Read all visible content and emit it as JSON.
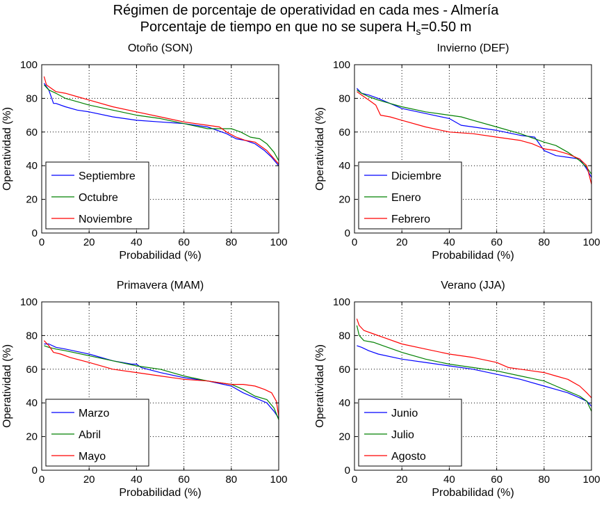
{
  "figure": {
    "title_line1": "Régimen de porcentaje de operatividad en cada mes - Almería",
    "title_line2_prefix": "Porcentaje de tiempo en que no se supera H",
    "title_line2_subscript": "s",
    "title_line2_suffix": "=0.50 m"
  },
  "colors": {
    "blue": "#0000ff",
    "green": "#008000",
    "red": "#ff0000",
    "grid": "#000000"
  },
  "chart_data": [
    {
      "type": "line",
      "title": "Otoño (SON)",
      "xlabel": "Probabilidad (%)",
      "ylabel": "Operatividad (%)",
      "xlim": [
        0,
        100
      ],
      "ylim": [
        0,
        100
      ],
      "xticks": [
        0,
        20,
        40,
        60,
        80,
        100
      ],
      "yticks": [
        0,
        20,
        40,
        60,
        80,
        100
      ],
      "grid": true,
      "legend_position": "bottom-left",
      "series": [
        {
          "name": "Septiembre",
          "color": "#0000ff",
          "x": [
            1,
            3,
            5,
            6,
            10,
            15,
            20,
            30,
            40,
            50,
            60,
            70,
            78,
            82,
            86,
            90,
            94,
            97,
            100
          ],
          "y": [
            89,
            85,
            77,
            77,
            75,
            73,
            72,
            69,
            67,
            66,
            65,
            63,
            59,
            56,
            55,
            53,
            49,
            45,
            40
          ]
        },
        {
          "name": "Octubre",
          "color": "#008000",
          "x": [
            1,
            3,
            6,
            10,
            15,
            20,
            30,
            40,
            50,
            60,
            70,
            75,
            80,
            84,
            88,
            92,
            95,
            98,
            100
          ],
          "y": [
            88,
            85,
            83,
            80,
            78,
            76,
            73,
            70,
            68,
            65,
            62,
            62,
            62,
            60,
            57,
            56,
            53,
            48,
            43
          ]
        },
        {
          "name": "Noviembre",
          "color": "#ff0000",
          "x": [
            1,
            2,
            4,
            6,
            10,
            15,
            20,
            30,
            40,
            50,
            60,
            70,
            75,
            78,
            82,
            86,
            90,
            95,
            100
          ],
          "y": [
            93,
            88,
            86,
            84,
            83,
            81,
            79,
            75,
            72,
            69,
            66,
            64,
            63,
            60,
            57,
            55,
            54,
            49,
            41
          ]
        }
      ]
    },
    {
      "type": "line",
      "title": "Invierno (DEF)",
      "xlabel": "Probabilidad (%)",
      "ylabel": "Operatividad (%)",
      "xlim": [
        0,
        100
      ],
      "ylim": [
        0,
        100
      ],
      "xticks": [
        0,
        20,
        40,
        60,
        80,
        100
      ],
      "yticks": [
        0,
        20,
        40,
        60,
        80,
        100
      ],
      "grid": true,
      "legend_position": "bottom-left",
      "series": [
        {
          "name": "Diciembre",
          "color": "#0000ff",
          "x": [
            1,
            3,
            6,
            10,
            15,
            20,
            30,
            40,
            45,
            50,
            60,
            70,
            76,
            80,
            85,
            90,
            95,
            98,
            100
          ],
          "y": [
            86,
            83,
            82,
            80,
            77,
            74,
            71,
            68,
            64,
            63,
            61,
            58,
            57,
            49,
            46,
            45,
            44,
            38,
            33
          ]
        },
        {
          "name": "Enero",
          "color": "#008000",
          "x": [
            1,
            3,
            6,
            10,
            15,
            20,
            30,
            40,
            45,
            50,
            60,
            70,
            80,
            85,
            90,
            95,
            98,
            100
          ],
          "y": [
            85,
            83,
            81,
            79,
            77,
            75,
            72,
            70,
            69,
            67,
            63,
            59,
            54,
            52,
            48,
            43,
            39,
            35
          ]
        },
        {
          "name": "Febrero",
          "color": "#ff0000",
          "x": [
            1,
            3,
            6,
            9,
            11,
            15,
            20,
            30,
            40,
            50,
            60,
            70,
            75,
            80,
            85,
            90,
            95,
            98,
            100
          ],
          "y": [
            84,
            82,
            79,
            76,
            70,
            69,
            67,
            63,
            60,
            59,
            57,
            55,
            53,
            50,
            49,
            47,
            44,
            40,
            29
          ]
        }
      ]
    },
    {
      "type": "line",
      "title": "Primavera (MAM)",
      "xlabel": "Probabilidad (%)",
      "ylabel": "Operatividad (%)",
      "xlim": [
        0,
        100
      ],
      "ylim": [
        0,
        100
      ],
      "xticks": [
        0,
        20,
        40,
        60,
        80,
        100
      ],
      "yticks": [
        0,
        20,
        40,
        60,
        80,
        100
      ],
      "grid": true,
      "legend_position": "bottom-left",
      "series": [
        {
          "name": "Marzo",
          "color": "#0000ff",
          "x": [
            1,
            3,
            6,
            10,
            20,
            30,
            38,
            40,
            42,
            50,
            60,
            70,
            80,
            85,
            90,
            95,
            98,
            100
          ],
          "y": [
            75,
            75,
            73,
            72,
            69,
            65,
            63,
            63,
            61,
            58,
            55,
            53,
            50,
            46,
            43,
            40,
            35,
            31
          ]
        },
        {
          "name": "Abril",
          "color": "#008000",
          "x": [
            1,
            3,
            6,
            10,
            20,
            30,
            40,
            50,
            60,
            70,
            80,
            85,
            90,
            95,
            98,
            100
          ],
          "y": [
            74,
            73,
            72,
            71,
            68,
            65,
            62,
            60,
            56,
            53,
            51,
            48,
            44,
            42,
            37,
            30
          ]
        },
        {
          "name": "Mayo",
          "color": "#ff0000",
          "x": [
            1,
            3,
            5,
            8,
            12,
            20,
            30,
            40,
            50,
            60,
            70,
            75,
            80,
            85,
            90,
            94,
            97,
            99,
            100
          ],
          "y": [
            77,
            74,
            70,
            69,
            67,
            64,
            60,
            58,
            56,
            54,
            53,
            52,
            51,
            51,
            50,
            48,
            46,
            41,
            32
          ]
        }
      ]
    },
    {
      "type": "line",
      "title": "Verano (JJA)",
      "xlabel": "Probabilidad (%)",
      "ylabel": "Operatividad (%)",
      "xlim": [
        0,
        100
      ],
      "ylim": [
        0,
        100
      ],
      "xticks": [
        0,
        20,
        40,
        60,
        80,
        100
      ],
      "yticks": [
        0,
        20,
        40,
        60,
        80,
        100
      ],
      "grid": true,
      "legend_position": "bottom-left",
      "series": [
        {
          "name": "Junio",
          "color": "#0000ff",
          "x": [
            1,
            3,
            6,
            10,
            20,
            30,
            40,
            50,
            60,
            70,
            80,
            85,
            90,
            95,
            98,
            100
          ],
          "y": [
            74,
            73,
            71,
            69,
            66,
            64,
            62,
            60,
            57,
            54,
            50,
            48,
            46,
            43,
            41,
            38
          ]
        },
        {
          "name": "Julio",
          "color": "#008000",
          "x": [
            1,
            2,
            4,
            8,
            12,
            20,
            30,
            40,
            50,
            60,
            70,
            80,
            85,
            90,
            95,
            98,
            100
          ],
          "y": [
            86,
            80,
            77,
            76,
            74,
            70,
            66,
            63,
            61,
            59,
            56,
            53,
            50,
            47,
            44,
            41,
            35
          ]
        },
        {
          "name": "Agosto",
          "color": "#ff0000",
          "x": [
            1,
            2,
            4,
            8,
            12,
            20,
            30,
            40,
            50,
            60,
            65,
            70,
            80,
            85,
            90,
            95,
            98,
            100
          ],
          "y": [
            90,
            86,
            83,
            81,
            79,
            75,
            72,
            69,
            67,
            64,
            61,
            60,
            58,
            56,
            54,
            50,
            46,
            43
          ]
        }
      ]
    }
  ]
}
